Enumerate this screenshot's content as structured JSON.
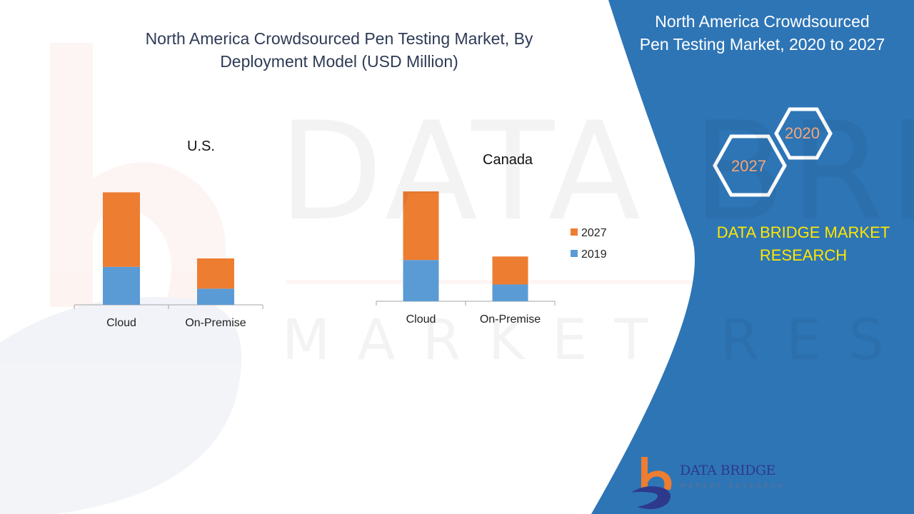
{
  "main_title": "North America Crowdsourced Pen Testing  Market, By Deployment Model (USD Million)",
  "side_panel": {
    "title": "North America Crowdsourced Pen Testing Market, 2020 to 2027",
    "hex_labels": [
      "2020",
      "2027"
    ],
    "brand": "DATA BRIDGE MARKET RESEARCH"
  },
  "logo": {
    "name": "DATA BRIDGE",
    "tagline": "MARKET RESEARCH"
  },
  "colors": {
    "panel_blue": "#2e75b6",
    "series_2019": "#5b9bd5",
    "series_2027": "#ed7d31",
    "brand_yellow": "#ffe600"
  },
  "chart_data": [
    {
      "type": "bar",
      "stacked": true,
      "title": "U.S.",
      "categories": [
        "Cloud",
        "On-Premise"
      ],
      "series": [
        {
          "name": "2019",
          "values": [
            54,
            23
          ]
        },
        {
          "name": "2027",
          "values": [
            106,
            43
          ]
        }
      ],
      "ylim": [
        0,
        160
      ],
      "grid": false
    },
    {
      "type": "bar",
      "stacked": true,
      "title": "Canada",
      "categories": [
        "Cloud",
        "On-Premise"
      ],
      "series": [
        {
          "name": "2019",
          "values": [
            59,
            24
          ]
        },
        {
          "name": "2027",
          "values": [
            98,
            40
          ]
        }
      ],
      "ylim": [
        0,
        160
      ],
      "grid": false,
      "legend": "right"
    }
  ]
}
